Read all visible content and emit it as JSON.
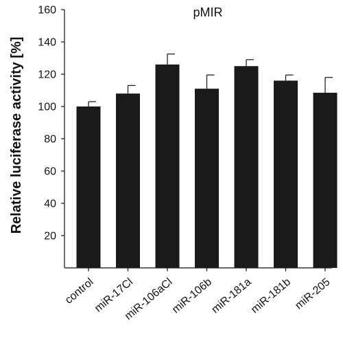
{
  "chart_data": {
    "type": "bar",
    "title": "pMIR",
    "xlabel": "",
    "ylabel": "Relative luciferase activity [%]",
    "ylim": [
      0,
      160
    ],
    "yticks": [
      20,
      40,
      60,
      80,
      100,
      120,
      140,
      160
    ],
    "grid": false,
    "categories": [
      "control",
      "miR-17Cl",
      "miR-106aCl",
      "miR-106b",
      "miR-181a",
      "miR-181b",
      "miR-205"
    ],
    "values": [
      100,
      108,
      126,
      111,
      125,
      116,
      108.5
    ],
    "error_upper": [
      3,
      5,
      6.5,
      8.5,
      4,
      3.5,
      9.5
    ],
    "bar_color": "#1a1a1a"
  }
}
